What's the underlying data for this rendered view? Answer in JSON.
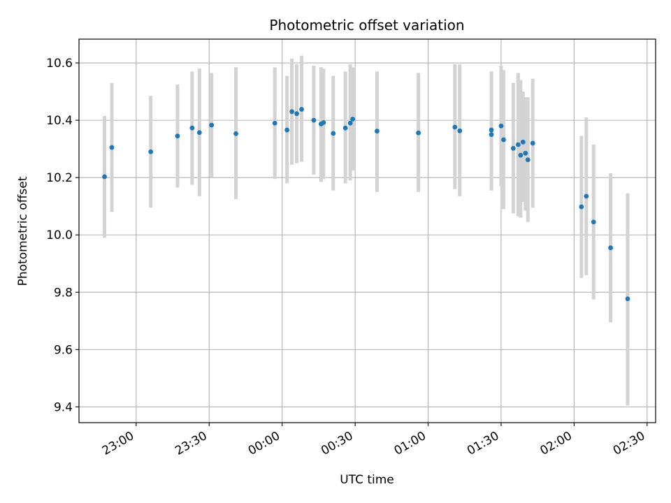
{
  "chart_data": {
    "type": "scatter",
    "title": "Photometric offset variation",
    "xlabel": "UTC time",
    "ylabel": "Photometric offset",
    "grid": true,
    "x_axis": "time",
    "x_tick_labels": [
      "23:00",
      "23:30",
      "00:00",
      "00:30",
      "01:00",
      "01:30",
      "02:00",
      "02:30"
    ],
    "x_ticks_minutes": [
      1380,
      1410,
      1440,
      1470,
      1500,
      1530,
      1560,
      1590
    ],
    "xlim_minutes": [
      1356.5,
      1593.5
    ],
    "ylim": [
      9.345,
      10.683
    ],
    "y_ticks": [
      9.4,
      9.6,
      9.8,
      10.0,
      10.2,
      10.4,
      10.6
    ],
    "y_tick_labels": [
      "9.4",
      "9.6",
      "9.8",
      "10.0",
      "10.2",
      "10.4",
      "10.6"
    ],
    "point_color": "#1f77b4",
    "errorbar_color": "#d3d3d3",
    "series": [
      {
        "x": [
          "22:47",
          "22:50",
          "23:06",
          "23:17",
          "23:23",
          "23:26",
          "23:31",
          "23:41",
          "23:57",
          "24:02",
          "24:04",
          "24:06",
          "24:08",
          "24:13",
          "24:16",
          "24:17",
          "24:21",
          "24:26",
          "24:28",
          "24:29",
          "24:39",
          "24:56",
          "25:11",
          "25:13",
          "25:26",
          "25:26",
          "25:30",
          "25:31",
          "25:35",
          "25:37",
          "25:38",
          "25:39",
          "25:40",
          "25:41",
          "25:43",
          "26:03",
          "26:05",
          "26:08",
          "26:15",
          "26:22"
        ],
        "y": [
          10.203,
          10.305,
          10.29,
          10.345,
          10.373,
          10.357,
          10.383,
          10.353,
          10.39,
          10.366,
          10.43,
          10.423,
          10.438,
          10.4,
          10.387,
          10.392,
          10.354,
          10.373,
          10.39,
          10.404,
          10.362,
          10.356,
          10.376,
          10.363,
          10.35,
          10.366,
          10.38,
          10.332,
          10.302,
          10.315,
          10.278,
          10.324,
          10.285,
          10.262,
          10.32,
          10.098,
          10.135,
          10.045,
          9.955,
          9.777
        ],
        "yerr_low": [
          9.99,
          10.08,
          10.095,
          10.165,
          10.175,
          10.135,
          10.2,
          10.125,
          10.195,
          10.18,
          10.245,
          10.25,
          10.255,
          10.21,
          10.185,
          10.195,
          10.155,
          10.18,
          10.19,
          10.225,
          10.15,
          10.15,
          10.16,
          10.135,
          10.155,
          10.17,
          10.17,
          10.09,
          10.075,
          10.065,
          10.06,
          10.115,
          10.085,
          10.045,
          10.095,
          9.85,
          9.86,
          9.775,
          9.695,
          9.405
        ],
        "yerr_high": [
          10.415,
          10.53,
          10.485,
          10.525,
          10.57,
          10.58,
          10.565,
          10.585,
          10.585,
          10.555,
          10.615,
          10.595,
          10.625,
          10.59,
          10.585,
          10.58,
          10.555,
          10.57,
          10.595,
          10.585,
          10.57,
          10.565,
          10.595,
          10.595,
          10.545,
          10.57,
          10.59,
          10.575,
          10.53,
          10.565,
          10.54,
          10.5,
          10.48,
          10.48,
          10.545,
          10.345,
          10.41,
          10.315,
          10.215,
          10.145
        ]
      }
    ]
  }
}
